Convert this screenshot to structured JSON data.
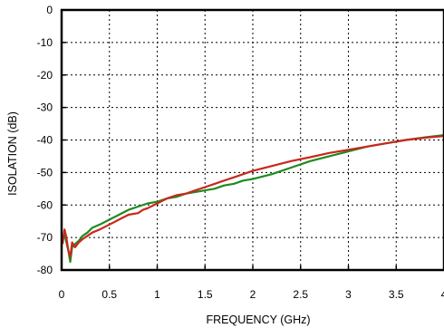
{
  "chart_data": {
    "type": "line",
    "title": "",
    "xlabel": "FREQUENCY (GHz)",
    "ylabel": "ISOLATION (dB)",
    "xlim": [
      0,
      4
    ],
    "ylim": [
      -80,
      0
    ],
    "x_ticks": [
      "0",
      "0.5",
      "1",
      "1.5",
      "2",
      "2.5",
      "3",
      "3.5",
      "4"
    ],
    "y_ticks": [
      "0",
      "-10",
      "-20",
      "-30",
      "-40",
      "-50",
      "-60",
      "-70",
      "-80"
    ],
    "grid": true,
    "series": [
      {
        "color": "#1f8a1f",
        "x": [
          0.01,
          0.03,
          0.05,
          0.07,
          0.09,
          0.11,
          0.14,
          0.18,
          0.22,
          0.27,
          0.32,
          0.4,
          0.5,
          0.6,
          0.7,
          0.8,
          0.9,
          1.0,
          1.1,
          1.2,
          1.3,
          1.4,
          1.5,
          1.6,
          1.7,
          1.8,
          1.9,
          2.0,
          2.2,
          2.4,
          2.6,
          2.8,
          3.0,
          3.2,
          3.4,
          3.6,
          3.8,
          4.0
        ],
        "y": [
          -70,
          -69,
          -71.5,
          -74,
          -77.5,
          -73,
          -72,
          -71,
          -69.5,
          -68.5,
          -67,
          -66,
          -64.5,
          -63,
          -61.5,
          -60.5,
          -59.5,
          -59,
          -58,
          -57.5,
          -56.5,
          -56,
          -55.5,
          -55,
          -54,
          -53.5,
          -52.5,
          -52,
          -50.5,
          -48.5,
          -46.5,
          -45,
          -43.5,
          -42,
          -41,
          -40,
          -39.2,
          -38.5
        ]
      },
      {
        "color": "#c8281e",
        "x": [
          0.01,
          0.03,
          0.05,
          0.07,
          0.09,
          0.11,
          0.14,
          0.18,
          0.22,
          0.27,
          0.32,
          0.4,
          0.5,
          0.6,
          0.7,
          0.8,
          0.85,
          0.9,
          1.0,
          1.1,
          1.2,
          1.3,
          1.4,
          1.5,
          1.6,
          1.7,
          1.8,
          1.9,
          2.0,
          2.2,
          2.4,
          2.6,
          2.8,
          3.0,
          3.2,
          3.4,
          3.6,
          3.8,
          4.0
        ],
        "y": [
          -72,
          -67.5,
          -70,
          -74,
          -76,
          -71.5,
          -73,
          -71.5,
          -70.5,
          -69.5,
          -68.5,
          -67.5,
          -66,
          -64.5,
          -63,
          -62.5,
          -61.5,
          -61,
          -59.5,
          -58,
          -57,
          -56.5,
          -55.5,
          -54.5,
          -53.5,
          -52.5,
          -51.5,
          -50.5,
          -49.5,
          -48,
          -46.5,
          -45.3,
          -44,
          -43,
          -42,
          -41,
          -40,
          -39.3,
          -38.8
        ]
      }
    ]
  }
}
